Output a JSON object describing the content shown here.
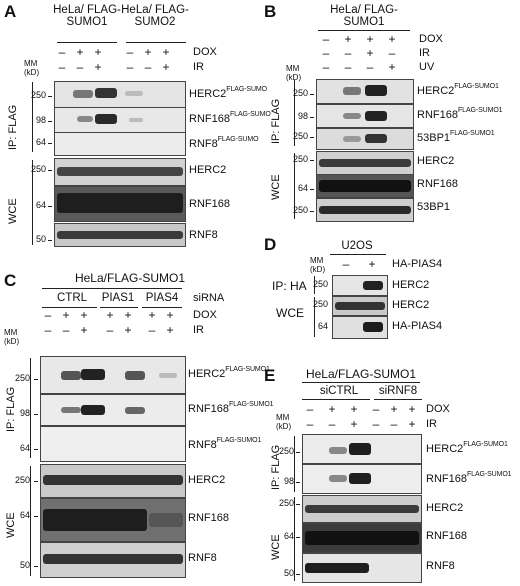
{
  "panels": {
    "A": {
      "label": "A",
      "cell_line_1": "HeLa/ FLAG- SUMO1",
      "cell_line_2": "HeLa/ FLAG- SUMO2",
      "cond_1": "DOX",
      "cond_2": "IR",
      "mm": "MM (kD)",
      "ip": "IP: FLAG",
      "wce": "WCE",
      "blots": [
        "HERC2",
        "RNF168",
        "RNF8",
        "HERC2",
        "RNF168",
        "RNF8"
      ],
      "blot_sup": [
        "FLAG-SUMO",
        "FLAG-SUMO",
        "FLAG-SUMO",
        "",
        "",
        ""
      ],
      "mw": [
        "250",
        "98",
        "64",
        "250",
        "64",
        "50"
      ]
    },
    "B": {
      "label": "B",
      "cell_line": "HeLa/ FLAG-SUMO1",
      "cond_1": "DOX",
      "cond_2": "IR",
      "cond_3": "UV",
      "mm": "MM (kD)",
      "ip": "IP: FLAG",
      "wce": "WCE",
      "blots": [
        "HERC2",
        "RNF168",
        "53BP1",
        "HERC2",
        "RNF168",
        "53BP1"
      ],
      "blot_sup": [
        "FLAG-SUMO1",
        "FLAG-SUMO1",
        "FLAG-SUMO1",
        "",
        "",
        ""
      ],
      "mw": [
        "250",
        "98",
        "250",
        "250",
        "64",
        "250"
      ]
    },
    "C": {
      "label": "C",
      "cell_line": "HeLa/FLAG-SUMO1",
      "groups": [
        "CTRL",
        "PIAS1",
        "PIAS4"
      ],
      "cond_0": "siRNA",
      "cond_1": "DOX",
      "cond_2": "IR",
      "mm": "MM (kD)",
      "ip": "IP: FLAG",
      "wce": "WCE",
      "blots": [
        "HERC2",
        "RNF168",
        "RNF8",
        "HERC2",
        "RNF168",
        "RNF8"
      ],
      "blot_sup": [
        "FLAG-SUMO1",
        "FLAG-SUMO1",
        "FLAG-SUMO1",
        "",
        "",
        ""
      ],
      "mw": [
        "250",
        "98",
        "64",
        "250",
        "64",
        "50"
      ]
    },
    "D": {
      "label": "D",
      "cell_line": "U2OS",
      "cond_1": "HA-PIAS4",
      "mm": "MM (kD)",
      "ip": "IP: HA",
      "wce": "WCE",
      "blots": [
        "HERC2",
        "HERC2",
        "HA-PIAS4"
      ],
      "mw": [
        "250",
        "250",
        "64"
      ]
    },
    "E": {
      "label": "E",
      "cell_line": "HeLa/FLAG-SUMO1",
      "groups": [
        "siCTRL",
        "siRNF8"
      ],
      "cond_1": "DOX",
      "cond_2": "IR",
      "mm": "MM (kD)",
      "ip": "IP: FLAG",
      "wce": "WCE",
      "blots": [
        "HERC2",
        "RNF168",
        "HERC2",
        "RNF168",
        "RNF8"
      ],
      "blot_sup": [
        "FLAG-SUMO1",
        "FLAG-SUMO1",
        "",
        "",
        ""
      ],
      "mw": [
        "250",
        "98",
        "250",
        "64",
        "50"
      ]
    }
  },
  "signs": {
    "minus": "–",
    "plus": "+"
  }
}
